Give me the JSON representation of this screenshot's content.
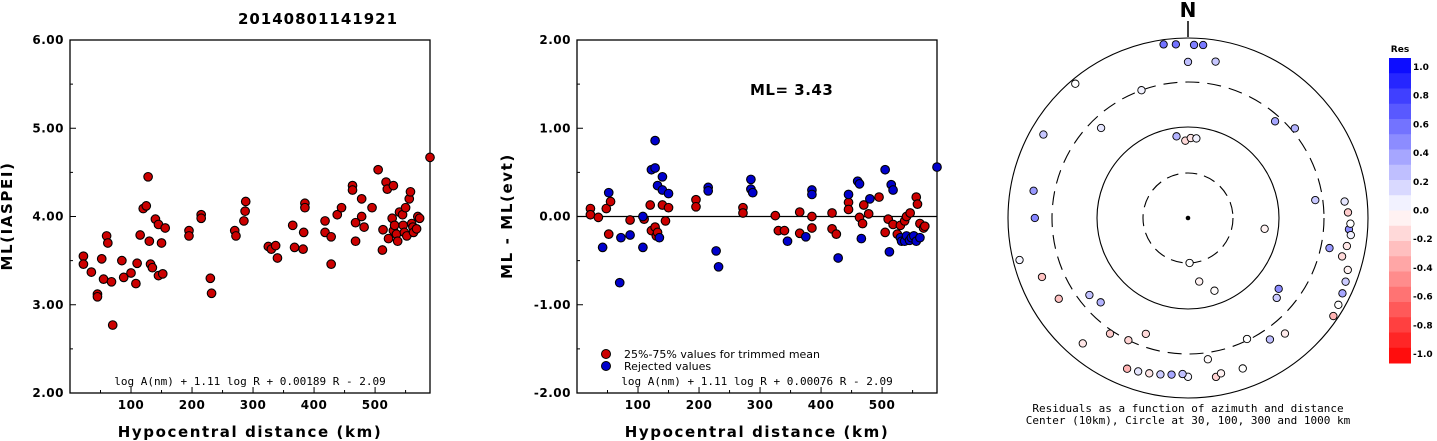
{
  "title": "20140801141921",
  "colors": {
    "red": "#cc0000",
    "blue": "#0000cc"
  },
  "chart_data": [
    {
      "type": "scatter",
      "name": "ml-vs-distance",
      "xlabel": "Hypocentral distance (km)",
      "ylabel": "ML(IASPEI)",
      "xlim": [
        0,
        590
      ],
      "ylim": [
        2.0,
        6.0
      ],
      "xticks": [
        "100",
        "200",
        "300",
        "400",
        "500"
      ],
      "yticks": [
        "2.00",
        "3.00",
        "4.00",
        "5.00",
        "6.00"
      ],
      "formula": "log A(nm) + 1.11 log R + 0.00189 R - 2.09",
      "points": [
        [
          22,
          3.55
        ],
        [
          22,
          3.46
        ],
        [
          35,
          3.37
        ],
        [
          45,
          3.12
        ],
        [
          45,
          3.09
        ],
        [
          52,
          3.52
        ],
        [
          55,
          3.29
        ],
        [
          60,
          3.78
        ],
        [
          62,
          3.7
        ],
        [
          68,
          3.26
        ],
        [
          70,
          2.77
        ],
        [
          85,
          3.5
        ],
        [
          88,
          3.31
        ],
        [
          100,
          3.36
        ],
        [
          108,
          3.24
        ],
        [
          110,
          3.47
        ],
        [
          115,
          3.79
        ],
        [
          120,
          4.09
        ],
        [
          125,
          4.12
        ],
        [
          128,
          4.45
        ],
        [
          130,
          3.72
        ],
        [
          132,
          3.46
        ],
        [
          135,
          3.42
        ],
        [
          140,
          3.97
        ],
        [
          145,
          3.33
        ],
        [
          145,
          3.91
        ],
        [
          150,
          3.7
        ],
        [
          152,
          3.35
        ],
        [
          156,
          3.87
        ],
        [
          195,
          3.84
        ],
        [
          195,
          3.78
        ],
        [
          215,
          4.02
        ],
        [
          215,
          3.98
        ],
        [
          230,
          3.3
        ],
        [
          232,
          3.13
        ],
        [
          270,
          3.84
        ],
        [
          272,
          3.78
        ],
        [
          285,
          3.95
        ],
        [
          287,
          4.06
        ],
        [
          288,
          4.17
        ],
        [
          325,
          3.66
        ],
        [
          330,
          3.63
        ],
        [
          337,
          3.67
        ],
        [
          340,
          3.53
        ],
        [
          365,
          3.9
        ],
        [
          368,
          3.65
        ],
        [
          382,
          3.63
        ],
        [
          383,
          3.82
        ],
        [
          385,
          4.15
        ],
        [
          385,
          4.1
        ],
        [
          418,
          3.95
        ],
        [
          418,
          3.82
        ],
        [
          428,
          3.46
        ],
        [
          428,
          3.77
        ],
        [
          438,
          4.02
        ],
        [
          445,
          4.1
        ],
        [
          463,
          4.35
        ],
        [
          463,
          4.3
        ],
        [
          468,
          3.93
        ],
        [
          468,
          3.72
        ],
        [
          478,
          4.2
        ],
        [
          478,
          4.0
        ],
        [
          482,
          3.88
        ],
        [
          495,
          4.1
        ],
        [
          505,
          4.53
        ],
        [
          512,
          3.62
        ],
        [
          513,
          3.85
        ],
        [
          518,
          4.39
        ],
        [
          520,
          4.31
        ],
        [
          522,
          3.75
        ],
        [
          528,
          3.98
        ],
        [
          530,
          4.35
        ],
        [
          530,
          3.84
        ],
        [
          532,
          3.9
        ],
        [
          535,
          3.8
        ],
        [
          537,
          3.72
        ],
        [
          540,
          4.05
        ],
        [
          545,
          4.02
        ],
        [
          546,
          3.9
        ],
        [
          548,
          3.82
        ],
        [
          550,
          4.1
        ],
        [
          552,
          3.78
        ],
        [
          556,
          4.2
        ],
        [
          558,
          4.28
        ],
        [
          560,
          3.92
        ],
        [
          562,
          3.88
        ],
        [
          563,
          3.82
        ],
        [
          568,
          3.86
        ],
        [
          570,
          4.0
        ],
        [
          573,
          3.98
        ],
        [
          590,
          4.67
        ]
      ]
    },
    {
      "type": "scatter",
      "name": "residual-vs-distance",
      "xlabel": "Hypocentral distance (km)",
      "ylabel": "ML - ML(evt)",
      "xlim": [
        0,
        590
      ],
      "ylim": [
        -2.0,
        2.0
      ],
      "xticks": [
        "100",
        "200",
        "300",
        "400",
        "500"
      ],
      "yticks": [
        "-2.00",
        "-1.00",
        "0.00",
        "1.00",
        "2.00"
      ],
      "annotation": "ML= 3.43",
      "legend": [
        "25%-75% values for trimmed mean",
        "Rejected values"
      ],
      "formula": "log A(nm) + 1.11 log R + 0.00076 R - 2.09",
      "red_points": [
        [
          22,
          0.09
        ],
        [
          22,
          0.02
        ],
        [
          35,
          -0.01
        ],
        [
          48,
          0.09
        ],
        [
          52,
          -0.2
        ],
        [
          55,
          0.17
        ],
        [
          87,
          -0.04
        ],
        [
          110,
          -0.03
        ],
        [
          120,
          0.13
        ],
        [
          122,
          -0.16
        ],
        [
          128,
          -0.12
        ],
        [
          130,
          -0.22
        ],
        [
          132,
          -0.18
        ],
        [
          140,
          0.13
        ],
        [
          145,
          -0.05
        ],
        [
          150,
          0.1
        ],
        [
          195,
          0.19
        ],
        [
          195,
          0.11
        ],
        [
          272,
          0.1
        ],
        [
          272,
          0.04
        ],
        [
          325,
          0.01
        ],
        [
          330,
          -0.16
        ],
        [
          340,
          -0.16
        ],
        [
          365,
          0.05
        ],
        [
          365,
          -0.19
        ],
        [
          385,
          -0.13
        ],
        [
          385,
          0.0
        ],
        [
          418,
          0.04
        ],
        [
          418,
          -0.14
        ],
        [
          425,
          -0.2
        ],
        [
          445,
          0.16
        ],
        [
          445,
          0.08
        ],
        [
          463,
          -0.01
        ],
        [
          468,
          -0.08
        ],
        [
          470,
          0.13
        ],
        [
          478,
          0.03
        ],
        [
          495,
          0.22
        ],
        [
          505,
          -0.18
        ],
        [
          510,
          -0.03
        ],
        [
          518,
          -0.09
        ],
        [
          525,
          -0.2
        ],
        [
          530,
          -0.1
        ],
        [
          537,
          -0.05
        ],
        [
          540,
          0.0
        ],
        [
          546,
          0.04
        ],
        [
          552,
          -0.22
        ],
        [
          556,
          0.22
        ],
        [
          558,
          0.14
        ],
        [
          562,
          -0.08
        ],
        [
          568,
          -0.13
        ],
        [
          570,
          -0.11
        ]
      ],
      "blue_points": [
        [
          42,
          -0.35
        ],
        [
          52,
          0.27
        ],
        [
          70,
          -0.75
        ],
        [
          72,
          -0.24
        ],
        [
          87,
          -0.21
        ],
        [
          108,
          0.0
        ],
        [
          108,
          -0.35
        ],
        [
          122,
          0.53
        ],
        [
          128,
          0.55
        ],
        [
          128,
          0.86
        ],
        [
          132,
          0.35
        ],
        [
          135,
          -0.24
        ],
        [
          140,
          0.45
        ],
        [
          140,
          0.3
        ],
        [
          150,
          0.26
        ],
        [
          215,
          0.33
        ],
        [
          215,
          0.29
        ],
        [
          228,
          -0.39
        ],
        [
          232,
          -0.57
        ],
        [
          285,
          0.42
        ],
        [
          285,
          0.31
        ],
        [
          288,
          0.27
        ],
        [
          345,
          -0.28
        ],
        [
          375,
          -0.23
        ],
        [
          385,
          0.3
        ],
        [
          385,
          0.25
        ],
        [
          428,
          -0.47
        ],
        [
          445,
          0.25
        ],
        [
          460,
          0.4
        ],
        [
          463,
          0.37
        ],
        [
          466,
          -0.25
        ],
        [
          480,
          0.2
        ],
        [
          505,
          0.53
        ],
        [
          512,
          -0.4
        ],
        [
          515,
          0.36
        ],
        [
          518,
          0.3
        ],
        [
          530,
          -0.24
        ],
        [
          532,
          -0.28
        ],
        [
          537,
          -0.28
        ],
        [
          540,
          -0.22
        ],
        [
          545,
          -0.27
        ],
        [
          548,
          -0.24
        ],
        [
          552,
          -0.22
        ],
        [
          556,
          -0.28
        ],
        [
          562,
          -0.24
        ],
        [
          590,
          0.56
        ]
      ]
    },
    {
      "type": "scatter",
      "name": "azimuth-residual-map",
      "north_label": "N",
      "caption_line1": "Residuals as a function of azimuth and distance",
      "caption_line2": "Center (10km), Circle at 30, 100, 300 and 1000 km",
      "colorbar_title": "Res",
      "colorbar_ticks": [
        "1.0",
        "0.8",
        "0.6",
        "0.4",
        "0.2",
        "0.0",
        "-0.2",
        "-0.4",
        "-0.6",
        "-0.8",
        "-1.0"
      ],
      "residual_scale": [
        -1.0,
        1.0
      ],
      "stations": [
        [
          0,
          -1.0,
          0.25
        ],
        [
          10,
          -1.0,
          0.22
        ],
        [
          42,
          -1.0,
          0.35
        ],
        [
          50,
          -1.0,
          0.3
        ],
        [
          82,
          -1.0,
          0.22
        ],
        [
          94,
          -1.0,
          0.45
        ],
        [
          102,
          -1.0,
          0.4
        ],
        [
          98,
          -1.0,
          -0.05
        ],
        [
          160,
          -1.0,
          -0.01
        ],
        [
          170,
          -1.0,
          -0.05
        ],
        [
          178,
          -1.0,
          0.0
        ],
        [
          200,
          -1.0,
          -0.15
        ],
        [
          206,
          -1.0,
          -0.17
        ],
        [
          170,
          -1.0,
          -0.18
        ],
        [
          214,
          -1.0,
          -0.2
        ],
        [
          220,
          -1.0,
          -0.1
        ],
        [
          226,
          -1.0,
          0.3
        ],
        [
          232,
          -1.0,
          0.24
        ],
        [
          238,
          -1.0,
          -0.24
        ],
        [
          248,
          -1.0,
          -0.24
        ],
        [
          256,
          -1.0,
          0.04
        ],
        [
          270,
          -1.0,
          0.48
        ],
        [
          280,
          -1.0,
          0.4
        ],
        [
          300,
          -1.0,
          0.22
        ],
        [
          316,
          -1.0,
          0.1
        ],
        [
          320,
          -1.0,
          0.0
        ],
        [
          340,
          -1.0,
          0.05
        ],
        [
          352,
          -1.0,
          0.55
        ],
        [
          356,
          -1.0,
          0.55
        ],
        [
          2,
          -1.0,
          0.5
        ],
        [
          5,
          -1.0,
          0.52
        ],
        [
          160,
          -1.0,
          0.0
        ],
        [
          168,
          -1.0,
          -0.05
        ],
        [
          172,
          -1.0,
          -0.02
        ],
        [
          180,
          -1.0,
          0.05
        ],
        [
          352,
          -1.0,
          0.3
        ],
        [
          358,
          -1.0,
          -0.15
        ],
        [
          2,
          -1.0,
          -0.1
        ],
        [
          6,
          -1.0,
          0.05
        ],
        [
          182,
          -1.0,
          0.25
        ],
        [
          186,
          -1.0,
          0.35
        ],
        [
          190,
          -1.0,
          0.2
        ],
        [
          194,
          -1.0,
          -0.1
        ],
        [
          198,
          -1.0,
          0.1
        ],
        [
          202,
          -1.0,
          -0.3
        ],
        [
          128,
          -1.0,
          0.45
        ],
        [
          132,
          -1.0,
          0.2
        ],
        [
          140,
          -1.0,
          -0.08
        ],
        [
          146,
          -1.0,
          0.25
        ],
        [
          154,
          -1.0,
          0.0
        ],
        [
          108,
          -1.0,
          -0.05
        ],
        [
          112,
          -1.0,
          0.2
        ],
        [
          116,
          -1.0,
          0.35
        ],
        [
          120,
          -1.0,
          0.0
        ],
        [
          124,
          -1.0,
          -0.3
        ],
        [
          104,
          -1.0,
          -0.15
        ],
        [
          100,
          -1.0,
          -0.1
        ],
        [
          96,
          -1.0,
          0.05
        ],
        [
          84,
          -1.0,
          0.1
        ],
        [
          88,
          -1.0,
          -0.2
        ],
        [
          92,
          -1.0,
          0.0
        ]
      ]
    }
  ]
}
